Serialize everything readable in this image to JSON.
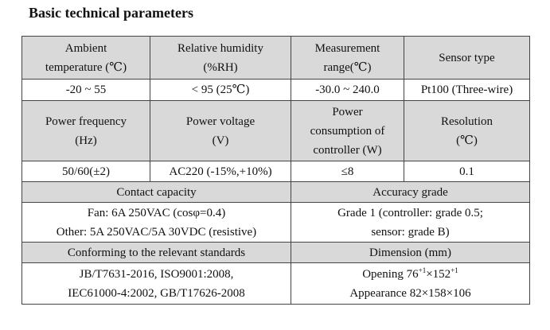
{
  "title": "Basic technical parameters",
  "row1_headers": [
    "Ambient",
    "temperature (℃)",
    "Relative humidity",
    "(%RH)",
    "Measurement",
    "range(℃)",
    "Sensor type"
  ],
  "row1_values": [
    "-20 ~ 55",
    "< 95 (25℃)",
    "-30.0 ~ 240.0",
    "Pt100 (Three-wire)"
  ],
  "row2_headers": [
    "Power frequency",
    "(Hz)",
    "Power voltage",
    "(V)",
    "Power",
    "consumption of",
    "controller (W)",
    "Resolution",
    "(℃)"
  ],
  "row2_values": [
    "50/60(±2)",
    "AC220 (-15%,+10%)",
    "≤8",
    "0.1"
  ],
  "contact_capacity": {
    "header": "Contact capacity",
    "line1": "Fan: 6A 250VAC (cosφ=0.4)",
    "line2": "Other: 5A 250VAC/5A 30VDC (resistive)"
  },
  "accuracy_grade": {
    "header": "Accuracy grade",
    "line1": "Grade 1 (controller: grade 0.5;",
    "line2": "sensor: grade B)"
  },
  "standards": {
    "header": "Conforming to the relevant standards",
    "line1": "JB/T7631-2016,  ISO9001:2008,",
    "line2": "IEC61000-4:2002,  GB/T17626-2008"
  },
  "dimension": {
    "header": "Dimension (mm)",
    "opening_label": "Opening 76",
    "opening_tol1": "+1",
    "opening_mid": "×152",
    "opening_tol2": "+1",
    "appearance": "Appearance 82×158×106"
  }
}
